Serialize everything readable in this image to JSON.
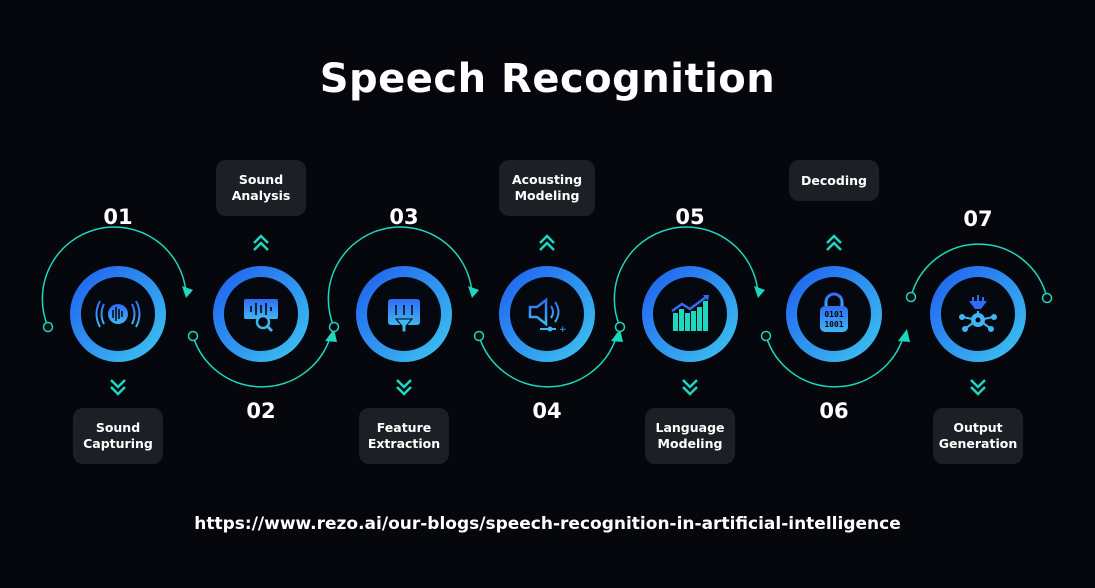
{
  "title": "Speech Recognition",
  "url": "https://www.rezo.ai/our-blogs/speech-recognition-in-artificial-intelligence",
  "colors": {
    "background": "#05070d",
    "ring_start": "#1f5cf0",
    "ring_end": "#3ec8f0",
    "arc": "#1fd6c0",
    "box": "#1d1f26"
  },
  "steps": [
    {
      "number": "01",
      "label": "Sound\nCapturing",
      "icon": "sound-wave-icon",
      "label_position": "bottom"
    },
    {
      "number": "02",
      "label": "Sound\nAnalysis",
      "icon": "waveform-search-icon",
      "label_position": "top"
    },
    {
      "number": "03",
      "label": "Feature\nExtraction",
      "icon": "filter-window-icon",
      "label_position": "bottom"
    },
    {
      "number": "04",
      "label": "Acousting\nModeling",
      "icon": "speaker-icon",
      "label_position": "top"
    },
    {
      "number": "05",
      "label": "Language\nModeling",
      "icon": "growth-chart-icon",
      "label_position": "bottom"
    },
    {
      "number": "06",
      "label": "Decoding",
      "icon": "binary-lock-icon",
      "label_position": "top"
    },
    {
      "number": "07",
      "label": "Output\nGeneration",
      "icon": "funnel-network-icon",
      "label_position": "bottom"
    }
  ]
}
